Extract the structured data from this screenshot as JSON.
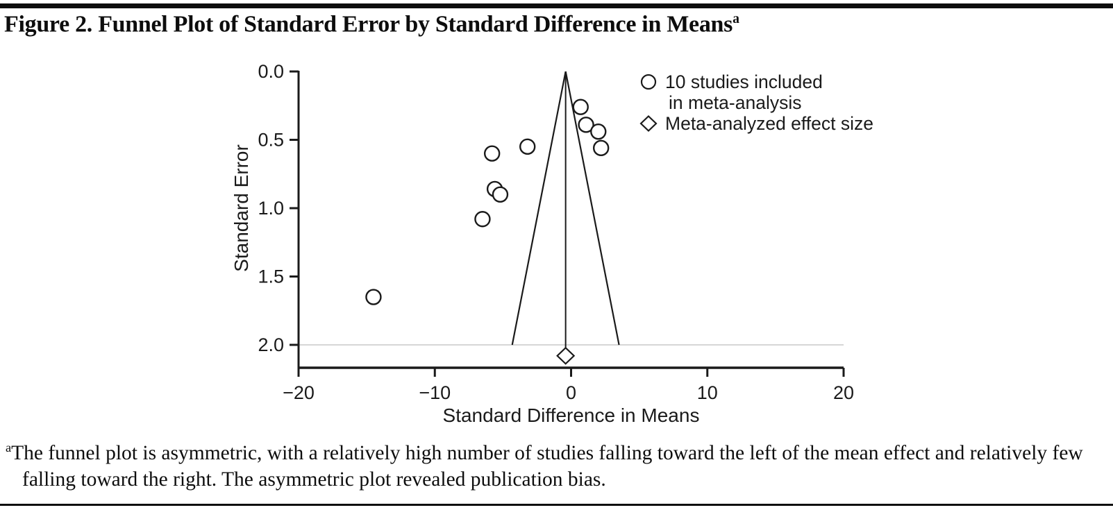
{
  "figure": {
    "title": "Figure 2. Funnel Plot of Standard Error by Standard Difference in Means",
    "title_superscript": "a",
    "footnote_marker": "a",
    "footnote": "The funnel plot is asymmetric, with a relatively high number of studies falling toward the left of the mean effect and relatively few falling toward the right. The asymmetric plot revealed publication bias."
  },
  "chart_data": {
    "type": "scatter",
    "subtype": "funnel-plot",
    "title": "Funnel Plot of Standard Error by Standard Difference in Means",
    "xlabel": "Standard Difference in Means",
    "ylabel": "Standard Error",
    "xlim": [
      -20,
      20
    ],
    "ylim": [
      0,
      2.0
    ],
    "y_inverted": true,
    "grid": "single-line-at-se-2",
    "x_ticks": [
      -20,
      -10,
      0,
      10,
      20
    ],
    "x_tick_labels": [
      "−20",
      "−10",
      "0",
      "10",
      "20"
    ],
    "y_ticks": [
      0.0,
      0.5,
      1.0,
      1.5,
      2.0
    ],
    "y_tick_labels": [
      "0.0",
      "0.5",
      "1.0",
      "1.5",
      "2.0"
    ],
    "mean_effect": -0.4,
    "funnel": {
      "apex_x": -0.4,
      "apex_se": 0,
      "base_se": 2.0,
      "half_width_at_base": 3.92
    },
    "gridline_se": 2.0,
    "studies": [
      {
        "x": 0.7,
        "se": 0.26
      },
      {
        "x": 1.1,
        "se": 0.39
      },
      {
        "x": 2.0,
        "se": 0.44
      },
      {
        "x": 2.2,
        "se": 0.56
      },
      {
        "x": -3.2,
        "se": 0.55
      },
      {
        "x": -5.8,
        "se": 0.6
      },
      {
        "x": -5.6,
        "se": 0.86
      },
      {
        "x": -5.2,
        "se": 0.9
      },
      {
        "x": -6.5,
        "se": 1.08
      },
      {
        "x": -14.5,
        "se": 1.65
      }
    ],
    "diamond": {
      "x": -0.4,
      "se": 2.08
    },
    "legend": [
      {
        "marker": "circle",
        "label_lines": [
          "10 studies included",
          "in meta-analysis"
        ]
      },
      {
        "marker": "diamond",
        "label_lines": [
          "Meta-analyzed effect size"
        ]
      }
    ],
    "legend_position": "upper-right-inside",
    "colors": {
      "ink": "#1a1a1a",
      "gridline": "#c9c9c9",
      "marker_fill": "#ffffff"
    }
  }
}
